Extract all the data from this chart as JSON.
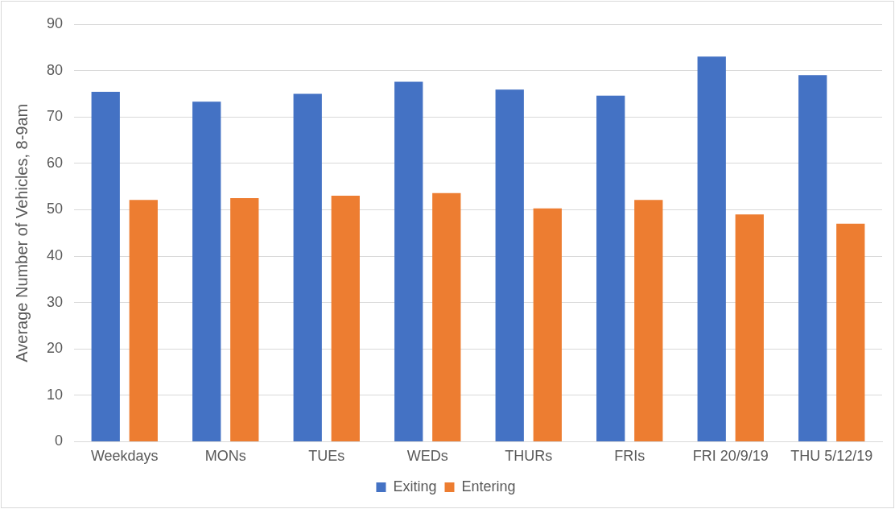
{
  "chart_data": {
    "type": "bar",
    "ylabel": "Average Number of Vehicles, 8-9am",
    "categories": [
      "Weekdays",
      "MONs",
      "TUEs",
      "WEDs",
      "THURs",
      "FRIs",
      "FRI 20/9/19",
      "THU 5/12/19"
    ],
    "series": [
      {
        "name": "Exiting",
        "color": "#4472c4",
        "values": [
          75.4,
          73.3,
          75.0,
          77.6,
          75.9,
          74.6,
          83.0,
          79.0
        ]
      },
      {
        "name": "Entering",
        "color": "#ed7d31",
        "values": [
          52.1,
          52.5,
          53.0,
          53.6,
          50.3,
          52.1,
          49.0,
          47.0
        ]
      }
    ],
    "ylim": [
      0,
      90
    ],
    "yticks": [
      0,
      10,
      20,
      30,
      40,
      50,
      60,
      70,
      80,
      90
    ],
    "grid": "y",
    "legend": "bottom"
  }
}
